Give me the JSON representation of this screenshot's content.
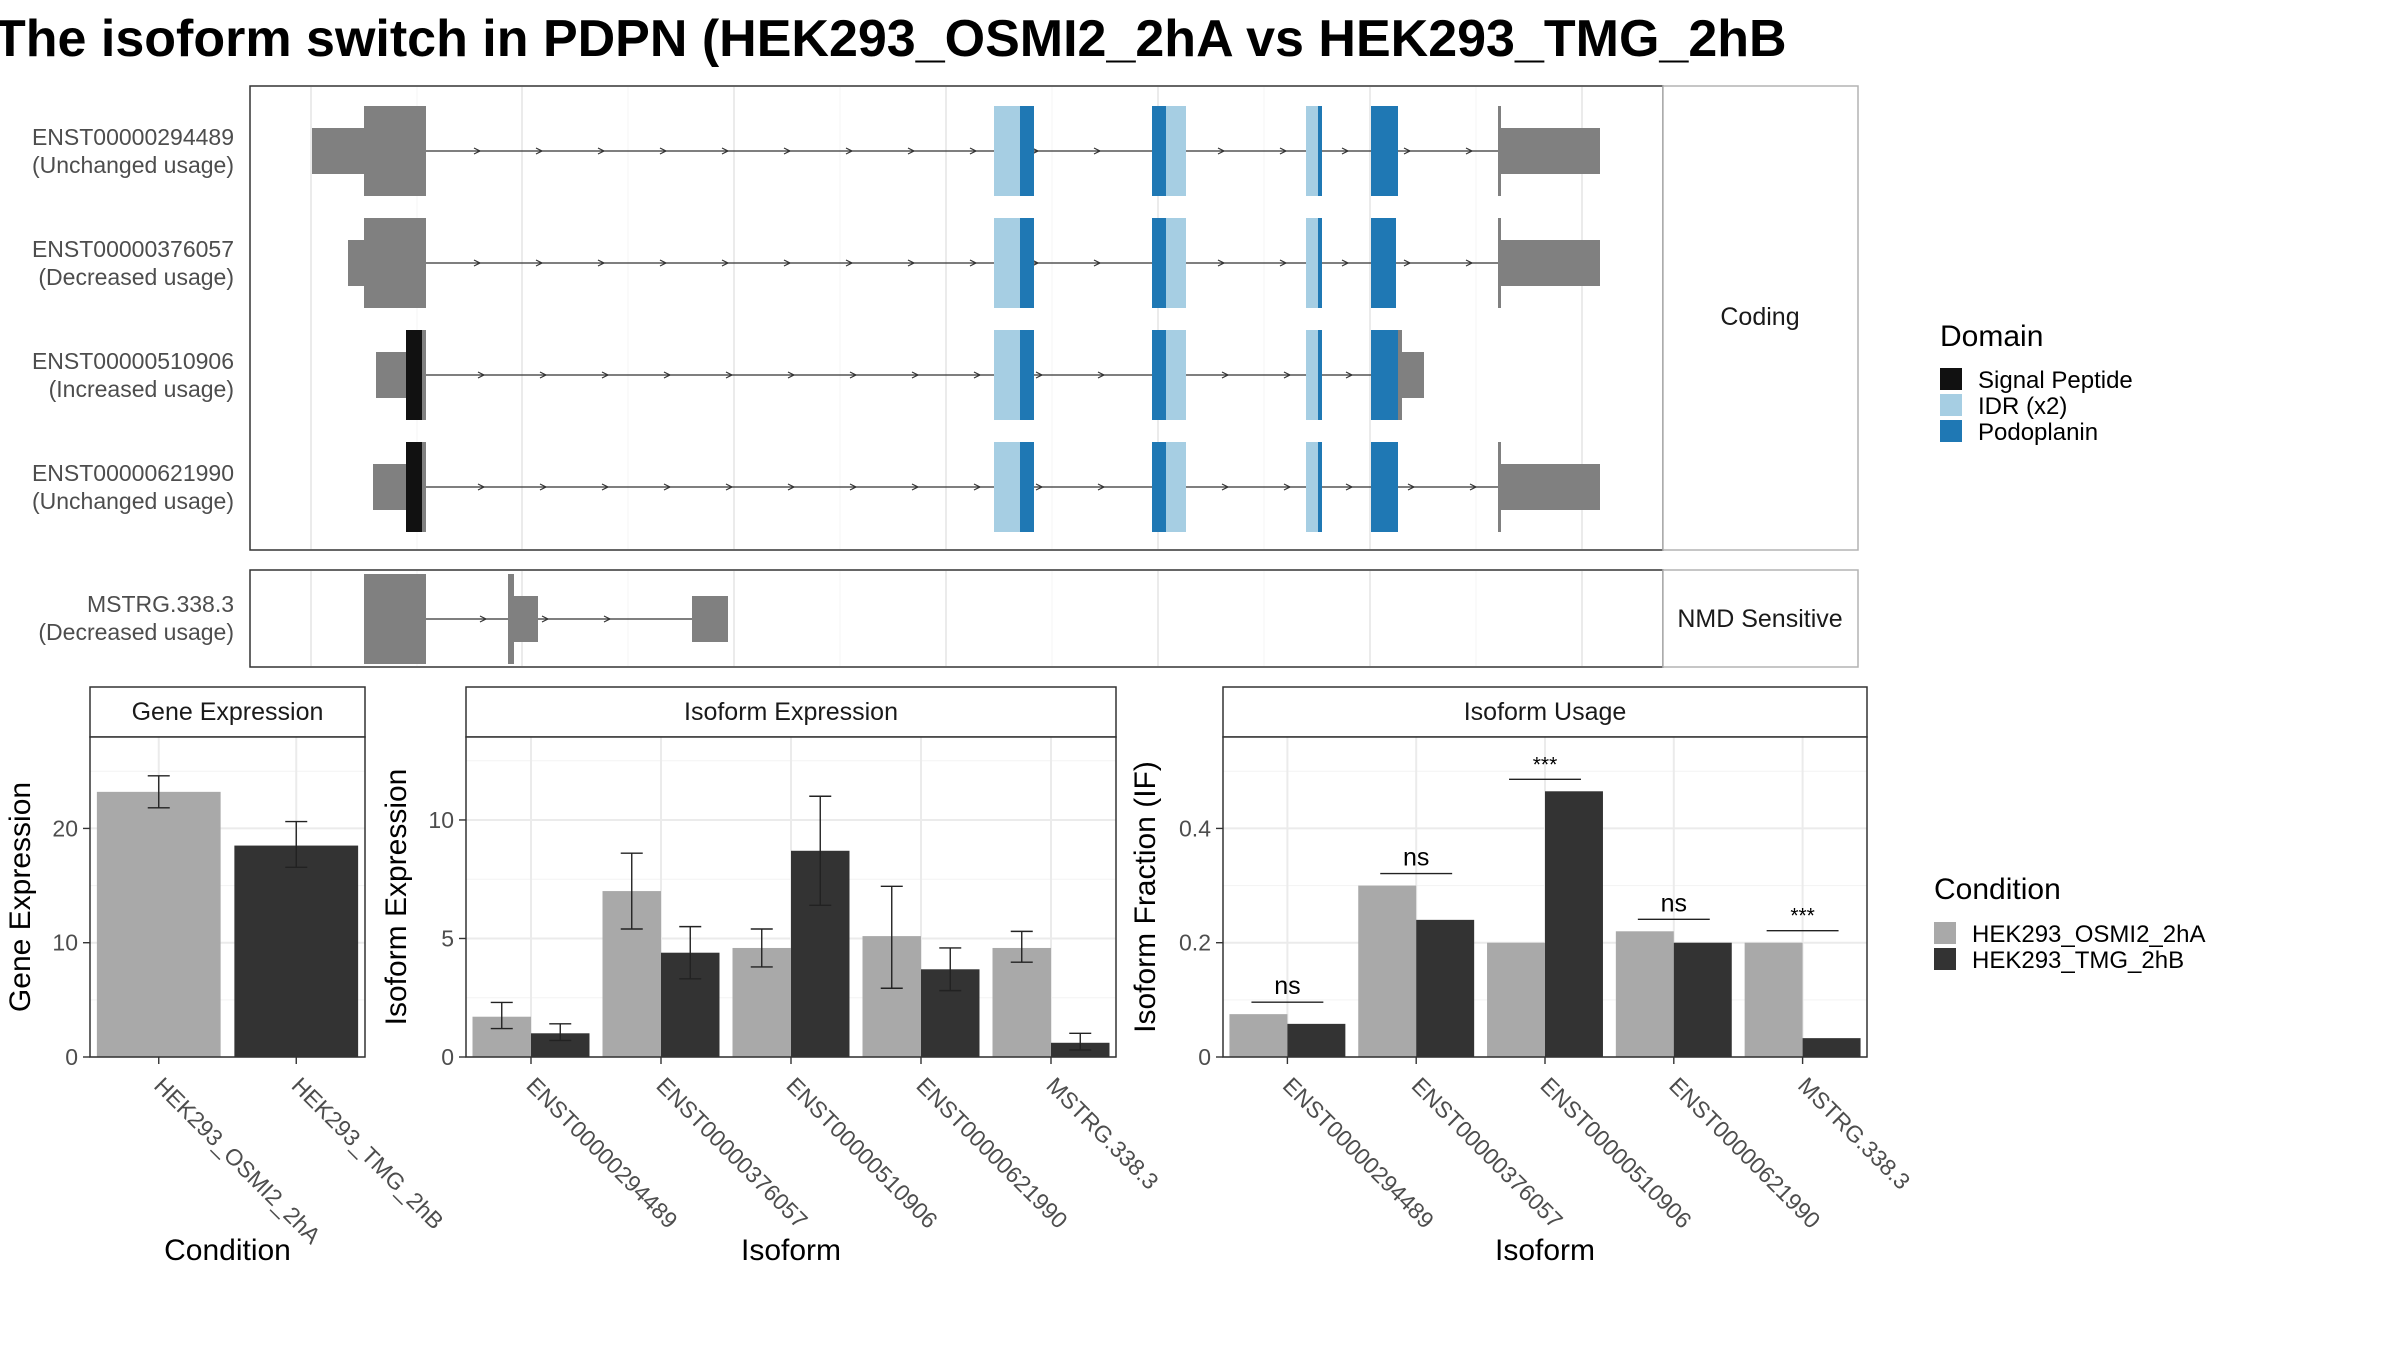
{
  "title": "The isoform switch in PDPN (HEK293_OSMI2_2hA vs HEK293_TMG_2hB",
  "colors": {
    "cond_a": "#a9a9a9",
    "cond_b": "#333333",
    "exon": "#808080",
    "signal_peptide": "#111111",
    "idr": "#a6cee3",
    "podoplanin": "#1f78b4"
  },
  "structure": {
    "facet_coding": "Coding",
    "facet_nmd": "NMD Sensitive",
    "coding_isoforms": [
      {
        "id": "ENST00000294489",
        "usage": "(Unchanged usage)"
      },
      {
        "id": "ENST00000376057",
        "usage": "(Decreased usage)"
      },
      {
        "id": "ENST00000510906",
        "usage": "(Increased usage)"
      },
      {
        "id": "ENST00000621990",
        "usage": "(Unchanged usage)"
      }
    ],
    "nmd_isoforms": [
      {
        "id": "MSTRG.338.3",
        "usage": "(Decreased usage)"
      }
    ]
  },
  "legend_domain": {
    "title": "Domain",
    "items": [
      {
        "label": "Signal Peptide",
        "color": "#111111"
      },
      {
        "label": "IDR (x2)",
        "color": "#a6cee3"
      },
      {
        "label": "Podoplanin",
        "color": "#1f78b4"
      }
    ]
  },
  "legend_condition": {
    "title": "Condition",
    "items": [
      {
        "label": "HEK293_OSMI2_2hA",
        "color": "#a9a9a9"
      },
      {
        "label": "HEK293_TMG_2hB",
        "color": "#333333"
      }
    ]
  },
  "chart_data": [
    {
      "type": "bar",
      "title": "Gene Expression",
      "xlabel": "Condition",
      "ylabel": "Gene Expression",
      "categories": [
        "HEK293_OSMI2_2hA",
        "HEK293_TMG_2hB"
      ],
      "values": [
        23.2,
        18.5
      ],
      "errors_low": [
        21.8,
        16.6
      ],
      "errors_high": [
        24.6,
        20.6
      ],
      "ylim": [
        0,
        28
      ],
      "yticks": [
        0,
        10,
        20
      ],
      "grid": true
    },
    {
      "type": "bar",
      "title": "Isoform Expression",
      "xlabel": "Isoform",
      "ylabel": "Isoform Expression",
      "categories": [
        "ENST00000294489",
        "ENST00000376057",
        "ENST00000510906",
        "ENST00000621990",
        "MSTRG.338.3"
      ],
      "series": [
        {
          "name": "HEK293_OSMI2_2hA",
          "values": [
            1.7,
            7.0,
            4.6,
            5.1,
            4.6
          ],
          "errors_low": [
            1.2,
            5.4,
            3.8,
            2.9,
            4.0
          ],
          "errors_high": [
            2.3,
            8.6,
            5.4,
            7.2,
            5.3
          ]
        },
        {
          "name": "HEK293_TMG_2hB",
          "values": [
            1.0,
            4.4,
            8.7,
            3.7,
            0.6
          ],
          "errors_low": [
            0.7,
            3.3,
            6.4,
            2.8,
            0.3
          ],
          "errors_high": [
            1.4,
            5.5,
            11.0,
            4.6,
            1.0
          ]
        }
      ],
      "ylim": [
        0,
        13.5
      ],
      "yticks": [
        0,
        5,
        10
      ],
      "grid": true
    },
    {
      "type": "bar",
      "title": "Isoform Usage",
      "xlabel": "Isoform",
      "ylabel": "Isoform Fraction (IF)",
      "categories": [
        "ENST00000294489",
        "ENST00000376057",
        "ENST00000510906",
        "ENST00000621990",
        "MSTRG.338.3"
      ],
      "series": [
        {
          "name": "HEK293_OSMI2_2hA",
          "values": [
            0.075,
            0.3,
            0.2,
            0.22,
            0.2
          ]
        },
        {
          "name": "HEK293_TMG_2hB",
          "values": [
            0.058,
            0.24,
            0.465,
            0.2,
            0.033
          ]
        }
      ],
      "significance": [
        "ns",
        "ns",
        "***",
        "ns",
        "***"
      ],
      "ylim": [
        0,
        0.56
      ],
      "yticks": [
        0.0,
        0.2,
        0.4
      ],
      "grid": true
    }
  ]
}
